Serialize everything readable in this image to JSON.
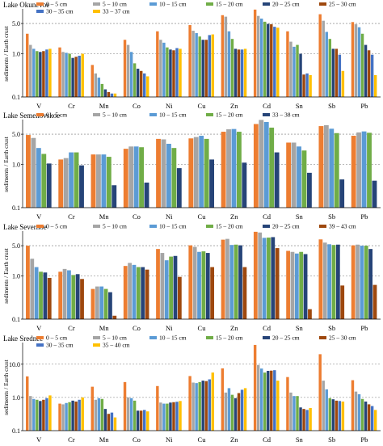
{
  "chart_data": [
    {
      "type": "bar",
      "title": "Lake Okunevoe",
      "ylabel": "sediments / Earth crust",
      "yscale": "log",
      "ylim": [
        0.1,
        10
      ],
      "yticks": [
        "0.1",
        "1.0",
        "5.0"
      ],
      "ytick_values": [
        0.1,
        1.0,
        5.0
      ],
      "gridlines": [
        1.0,
        5.0
      ],
      "categories": [
        "V",
        "Cr",
        "Mn",
        "Co",
        "Ni",
        "Cu",
        "Zn",
        "Cd",
        "Sn",
        "Sb",
        "Pb"
      ],
      "series": [
        {
          "name": "0 – 5 cm",
          "color": "#ed7d31",
          "values": [
            2.9,
            1.4,
            0.55,
            2.1,
            3.3,
            4.6,
            7.8,
            10.5,
            3.3,
            8.2,
            5.4
          ]
        },
        {
          "name": "5 – 10 cm",
          "color": "#a5a5a5",
          "values": [
            1.6,
            1.1,
            0.35,
            1.6,
            2.1,
            3.4,
            7.2,
            7.5,
            1.9,
            5.8,
            4.8
          ]
        },
        {
          "name": "10 – 15 cm",
          "color": "#5b9bd5",
          "values": [
            1.3,
            1.05,
            0.28,
            1.1,
            1.8,
            3.0,
            3.3,
            6.5,
            1.45,
            3.2,
            4.1
          ]
        },
        {
          "name": "15 – 20 cm",
          "color": "#70ad47",
          "values": [
            1.15,
            1.0,
            0.2,
            0.6,
            1.4,
            2.5,
            2.2,
            5.5,
            1.6,
            2.2,
            2.9
          ]
        },
        {
          "name": "20 – 25 cm",
          "color": "#264478",
          "values": [
            1.1,
            0.8,
            0.15,
            0.45,
            1.25,
            2.1,
            1.3,
            4.9,
            1.0,
            1.3,
            1.6
          ]
        },
        {
          "name": "25 – 30 cm",
          "color": "#9e480e",
          "values": [
            1.15,
            0.85,
            0.13,
            0.4,
            1.2,
            2.1,
            1.25,
            4.8,
            0.33,
            1.3,
            1.2
          ]
        },
        {
          "name": "30 – 35 cm",
          "color": "#4472c4",
          "values": [
            1.25,
            0.9,
            0.12,
            0.35,
            1.35,
            2.7,
            1.25,
            4.2,
            0.35,
            0.95,
            0.95
          ]
        },
        {
          "name": "33 – 37 cm",
          "color": "#ffc000",
          "values": [
            1.3,
            1.0,
            0.12,
            0.3,
            1.3,
            2.8,
            1.3,
            4.0,
            0.32,
            0.4,
            0.32
          ]
        }
      ]
    },
    {
      "type": "bar",
      "title": "Lake Semenovskoe",
      "ylabel": "sediments / Earth crust",
      "yscale": "log",
      "ylim": [
        0.1,
        10
      ],
      "yticks": [
        "0.1",
        "1.0",
        "5.0"
      ],
      "ytick_values": [
        0.1,
        1.0,
        5.0
      ],
      "gridlines": [
        1.0,
        5.0
      ],
      "categories": [
        "V",
        "Cr",
        "Mn",
        "Co",
        "Ni",
        "Cu",
        "Zn",
        "Cd",
        "Sn",
        "Sb",
        "Pb"
      ],
      "series": [
        {
          "name": "0 – 5 cm",
          "color": "#ed7d31",
          "values": [
            4.8,
            1.3,
            1.7,
            2.3,
            3.9,
            4.0,
            5.7,
            8.6,
            3.2,
            7.7,
            4.6
          ]
        },
        {
          "name": "5 – 10 cm",
          "color": "#a5a5a5",
          "values": [
            4.1,
            1.4,
            1.7,
            2.6,
            3.8,
            4.3,
            6.5,
            10.7,
            3.2,
            8.1,
            5.5
          ]
        },
        {
          "name": "10 – 15 cm",
          "color": "#5b9bd5",
          "values": [
            2.4,
            1.9,
            1.7,
            2.6,
            3.0,
            4.6,
            6.6,
            9.6,
            2.6,
            6.7,
            5.8
          ]
        },
        {
          "name": "15 – 20 cm",
          "color": "#70ad47",
          "values": [
            1.75,
            1.9,
            1.5,
            2.5,
            2.4,
            3.9,
            5.7,
            7.1,
            2.1,
            5.3,
            5.4
          ]
        },
        {
          "name": "33 – 38 cm",
          "color": "#264478",
          "values": [
            1.05,
            0.95,
            0.33,
            0.38,
            0.82,
            1.3,
            1.1,
            1.9,
            0.64,
            0.45,
            0.42
          ]
        }
      ]
    },
    {
      "type": "bar",
      "title": "Lake Severnoe",
      "ylabel": "sediments / Earth crust",
      "yscale": "log",
      "ylim": [
        0.1,
        10
      ],
      "yticks": [
        "0.1",
        "1.0",
        "5.0"
      ],
      "ytick_values": [
        0.1,
        1.0,
        5.0
      ],
      "gridlines": [
        1.0,
        5.0
      ],
      "categories": [
        "V",
        "Cr",
        "Mn",
        "Co",
        "Ni",
        "Cu",
        "Zn",
        "Cd",
        "Sn",
        "Sb",
        "Pb"
      ],
      "series": [
        {
          "name": "0 – 5 cm",
          "color": "#ed7d31",
          "values": [
            5.0,
            1.25,
            0.5,
            1.7,
            4.2,
            5.1,
            6.9,
            10.5,
            3.8,
            7.0,
            5.1
          ]
        },
        {
          "name": "5 – 10 cm",
          "color": "#a5a5a5",
          "values": [
            2.5,
            1.45,
            0.57,
            2.0,
            3.4,
            4.7,
            7.2,
            10.1,
            3.6,
            5.9,
            5.3
          ]
        },
        {
          "name": "10 – 15 cm",
          "color": "#5b9bd5",
          "values": [
            1.6,
            1.35,
            0.57,
            1.8,
            2.3,
            3.6,
            5.2,
            7.6,
            3.3,
            5.4,
            5.0
          ]
        },
        {
          "name": "15 – 20 cm",
          "color": "#70ad47",
          "values": [
            1.25,
            1.05,
            0.5,
            1.6,
            2.8,
            3.7,
            5.3,
            7.7,
            3.6,
            5.2,
            5.0
          ]
        },
        {
          "name": "20 – 25 cm",
          "color": "#264478",
          "values": [
            1.2,
            1.1,
            0.42,
            1.6,
            2.9,
            3.4,
            5.1,
            7.9,
            3.2,
            5.3,
            4.2
          ]
        },
        {
          "name": "39 – 43 cm",
          "color": "#9e480e",
          "values": [
            0.9,
            0.85,
            0.12,
            1.4,
            0.95,
            1.6,
            1.6,
            4.4,
            0.17,
            0.6,
            0.62
          ]
        }
      ]
    },
    {
      "type": "bar",
      "title": "Lake Srednee",
      "ylabel": "sediments / Earth crust",
      "yscale": "log",
      "ylim": [
        0.1,
        40
      ],
      "yticks": [
        "0.1",
        "1.0",
        "10.0"
      ],
      "ytick_values": [
        0.1,
        1.0,
        10.0
      ],
      "gridlines": [
        1.0,
        10.0
      ],
      "categories": [
        "V",
        "Cr",
        "Mn",
        "Co",
        "Ni",
        "Cu",
        "Zn",
        "Cd",
        "Sn",
        "Sb",
        "Pb"
      ],
      "series": [
        {
          "name": "0 – 5 cm",
          "color": "#ed7d31",
          "values": [
            4.3,
            0.65,
            2.1,
            2.9,
            2.2,
            4.4,
            7.5,
            38,
            4.1,
            20,
            3.3
          ]
        },
        {
          "name": "5 – 10 cm",
          "color": "#a5a5a5",
          "values": [
            1.1,
            0.62,
            0.85,
            1.0,
            0.7,
            2.8,
            1.4,
            9.5,
            1.4,
            3.2,
            1.5
          ]
        },
        {
          "name": "10 – 15 cm",
          "color": "#5b9bd5",
          "values": [
            0.9,
            0.68,
            0.95,
            0.95,
            0.65,
            2.7,
            1.9,
            7.4,
            1.1,
            1.75,
            1.25
          ]
        },
        {
          "name": "15 – 20 cm",
          "color": "#70ad47",
          "values": [
            0.85,
            0.72,
            0.9,
            0.8,
            0.65,
            2.9,
            1.2,
            5.6,
            1.1,
            0.95,
            0.9
          ]
        },
        {
          "name": "20 – 25 cm",
          "color": "#264478",
          "values": [
            0.78,
            0.8,
            0.45,
            0.4,
            0.7,
            3.2,
            0.95,
            6.3,
            0.5,
            0.88,
            0.75
          ]
        },
        {
          "name": "25 – 30 cm",
          "color": "#9e480e",
          "values": [
            0.85,
            0.75,
            0.32,
            0.4,
            0.72,
            3.1,
            1.35,
            6.4,
            0.45,
            0.8,
            0.62
          ]
        },
        {
          "name": "30 – 35 cm",
          "color": "#4472c4",
          "values": [
            0.95,
            0.85,
            0.35,
            0.42,
            0.74,
            3.5,
            1.7,
            6.6,
            0.42,
            0.78,
            0.55
          ]
        },
        {
          "name": "35 – 40 cm",
          "color": "#ffc000",
          "values": [
            1.15,
            1.0,
            0.25,
            0.38,
            0.78,
            5.6,
            1.9,
            3.2,
            0.48,
            0.75,
            0.42
          ]
        }
      ]
    }
  ]
}
